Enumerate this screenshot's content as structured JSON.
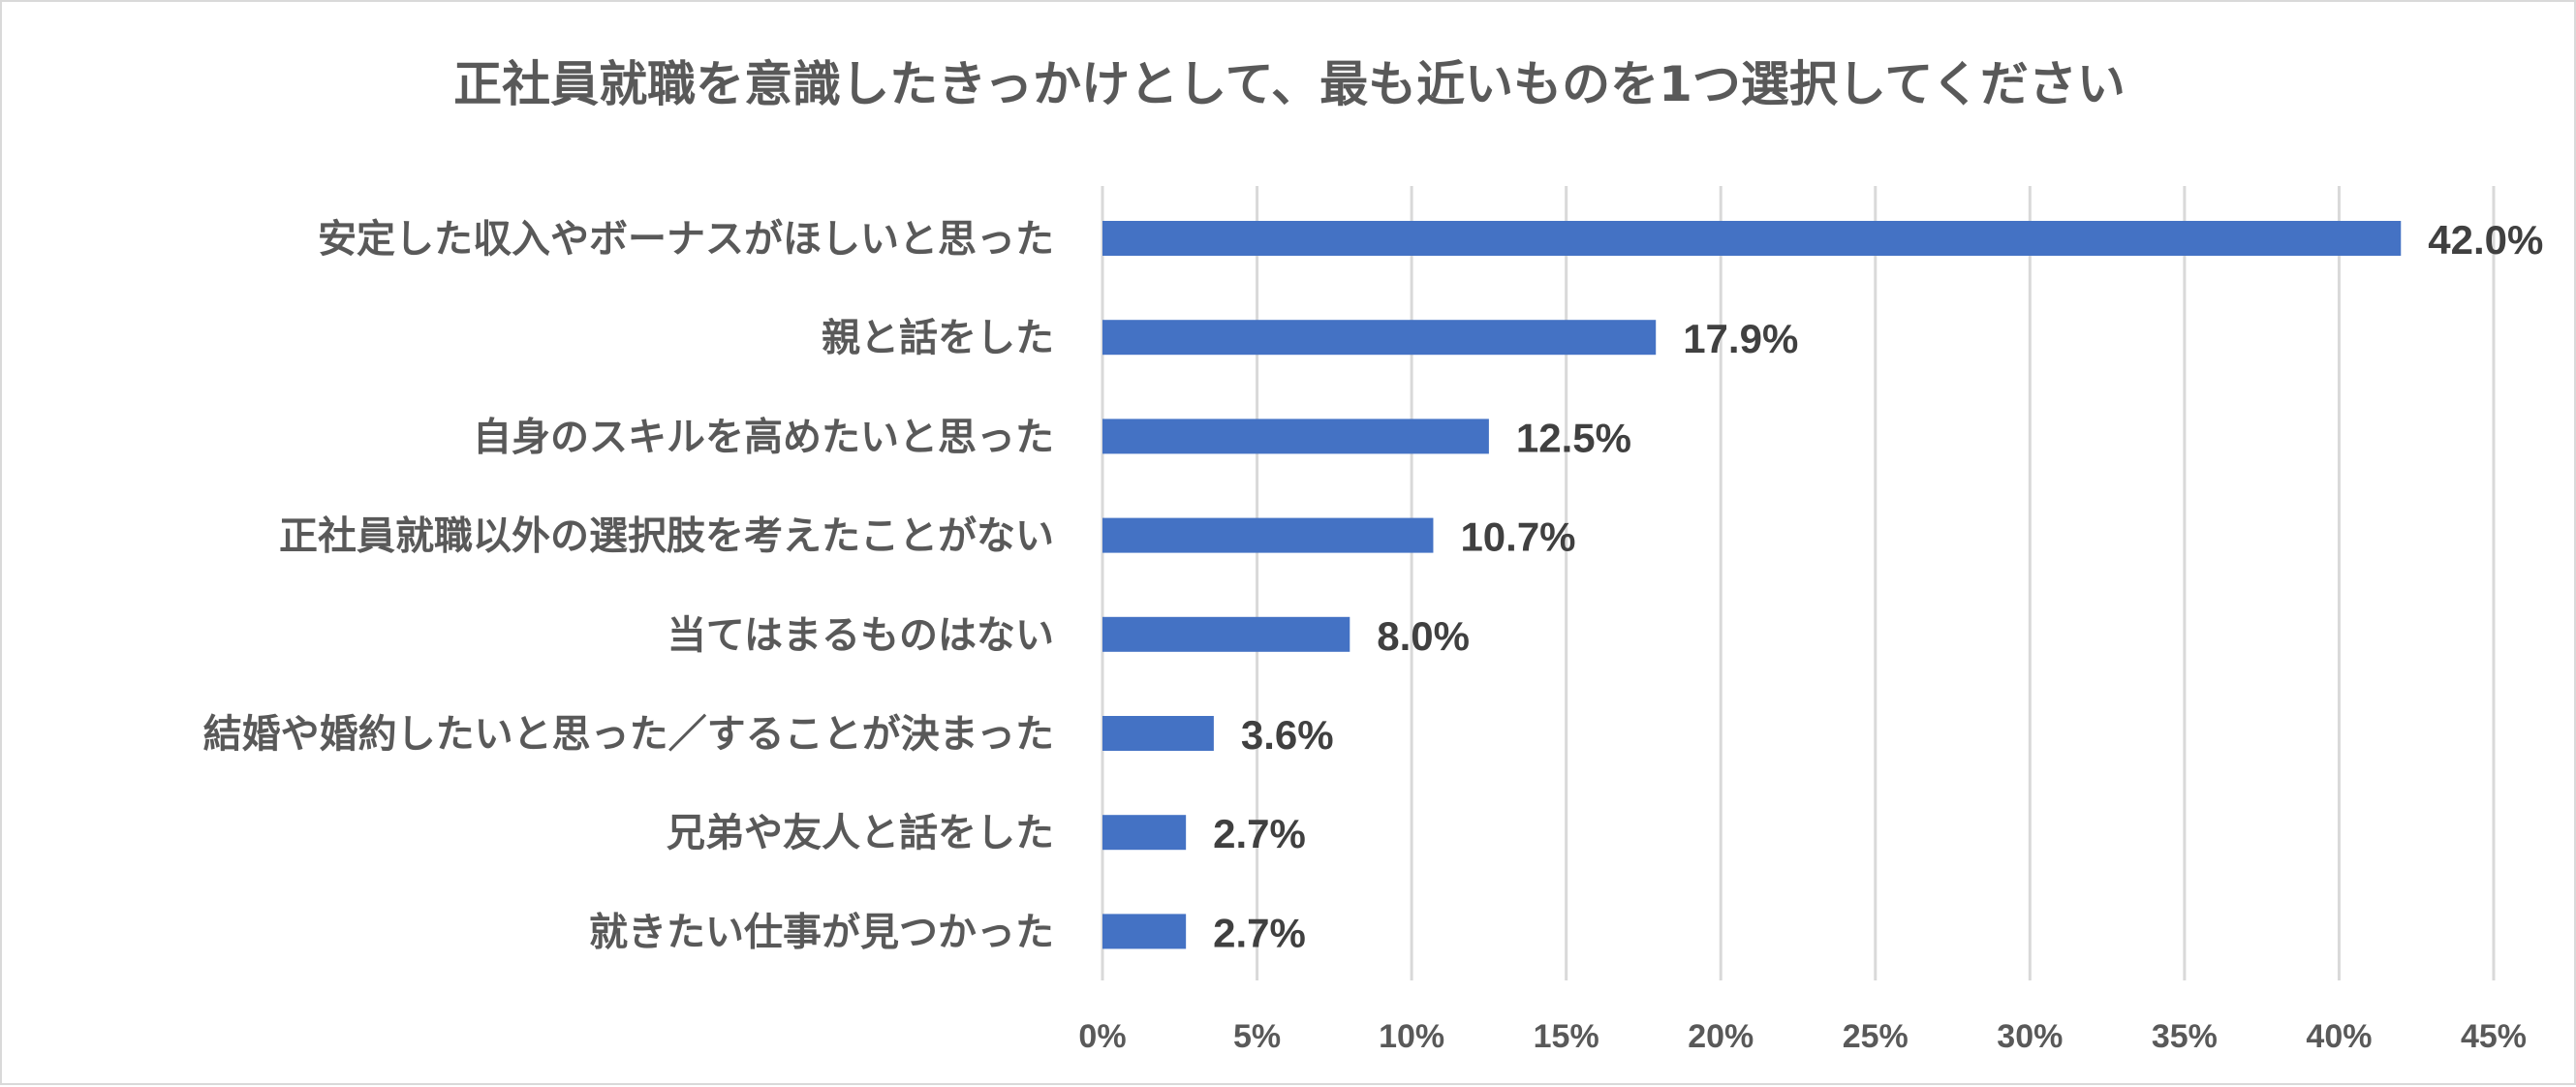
{
  "chart_data": {
    "type": "bar",
    "orientation": "horizontal",
    "title": "正社員就職を意識したきっかけとして、最も近いものを1つ選択してください",
    "categories": [
      "安定した収入やボーナスがほしいと思った",
      "親と話をした",
      "自身のスキルを高めたいと思った",
      "正社員就職以外の選択肢を考えたことがない",
      "当てはまるものはない",
      "結婚や婚約したいと思った／することが決まった",
      "兄弟や友人と話をした",
      "就きたい仕事が見つかった"
    ],
    "values": [
      42.0,
      17.9,
      12.5,
      10.7,
      8.0,
      3.6,
      2.7,
      2.7
    ],
    "value_labels": [
      "42.0%",
      "17.9%",
      "12.5%",
      "10.7%",
      "8.0%",
      "3.6%",
      "2.7%",
      "2.7%"
    ],
    "xlim": [
      0,
      45
    ],
    "x_ticks": [
      0,
      5,
      10,
      15,
      20,
      25,
      30,
      35,
      40,
      45
    ],
    "x_tick_labels": [
      "0%",
      "5%",
      "10%",
      "15%",
      "20%",
      "25%",
      "30%",
      "35%",
      "40%",
      "45%"
    ],
    "xlabel": "",
    "ylabel": "",
    "grid": "vertical",
    "legend": "none",
    "bar_color": "#4472C4"
  }
}
